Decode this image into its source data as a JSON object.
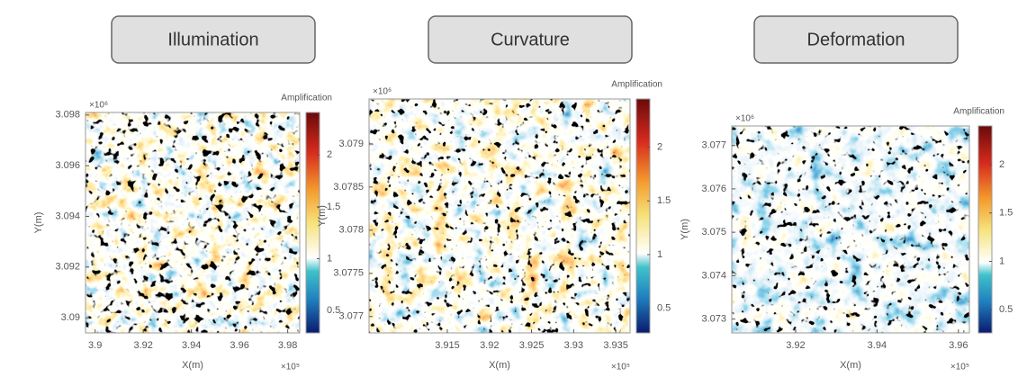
{
  "chart_data": [
    {
      "type": "heatmap",
      "title": "Illumination",
      "x_label": "X(m)",
      "y_label": "Y(m)",
      "x_scale_label": "×10⁵",
      "y_scale_label": "×10⁶",
      "xlim": [
        3.896,
        3.985
      ],
      "xticks": [
        3.9,
        3.92,
        3.94,
        3.96,
        3.98
      ],
      "ylim": [
        3.0894,
        3.0981
      ],
      "yticks": [
        3.09,
        3.092,
        3.094,
        3.096,
        3.098
      ],
      "colorbar_label": "Amplification",
      "clim": [
        0.285,
        2.41
      ],
      "cticks": [
        0.5,
        1,
        1.5,
        2
      ]
    },
    {
      "type": "heatmap",
      "title": "Curvature",
      "x_label": "X(m)",
      "y_label": "Y(m)",
      "x_scale_label": "×10⁵",
      "y_scale_label": "×10⁶",
      "xlim": [
        3.9057,
        3.9367
      ],
      "xticks": [
        3.915,
        3.92,
        3.925,
        3.93,
        3.935
      ],
      "ylim": [
        3.07681,
        3.07952
      ],
      "yticks": [
        3.077,
        3.0775,
        3.078,
        3.0785,
        3.079
      ],
      "colorbar_label": "Amplification",
      "clim": [
        0.27,
        2.45
      ],
      "cticks": [
        0.5,
        1,
        1.5,
        2
      ]
    },
    {
      "type": "heatmap",
      "title": "Deformation",
      "x_label": "X(m)",
      "y_label": "Y(m)",
      "x_scale_label": "×10⁵",
      "y_scale_label": "×10⁶",
      "xlim": [
        3.9043,
        3.9627
      ],
      "xticks": [
        3.92,
        3.94,
        3.96
      ],
      "ylim": [
        3.07268,
        3.07745
      ],
      "yticks": [
        3.073,
        3.074,
        3.075,
        3.076,
        3.077
      ],
      "colorbar_label": "Amplification",
      "clim": [
        0.26,
        2.4
      ],
      "cticks": [
        0.5,
        1,
        1.5,
        2
      ]
    }
  ]
}
